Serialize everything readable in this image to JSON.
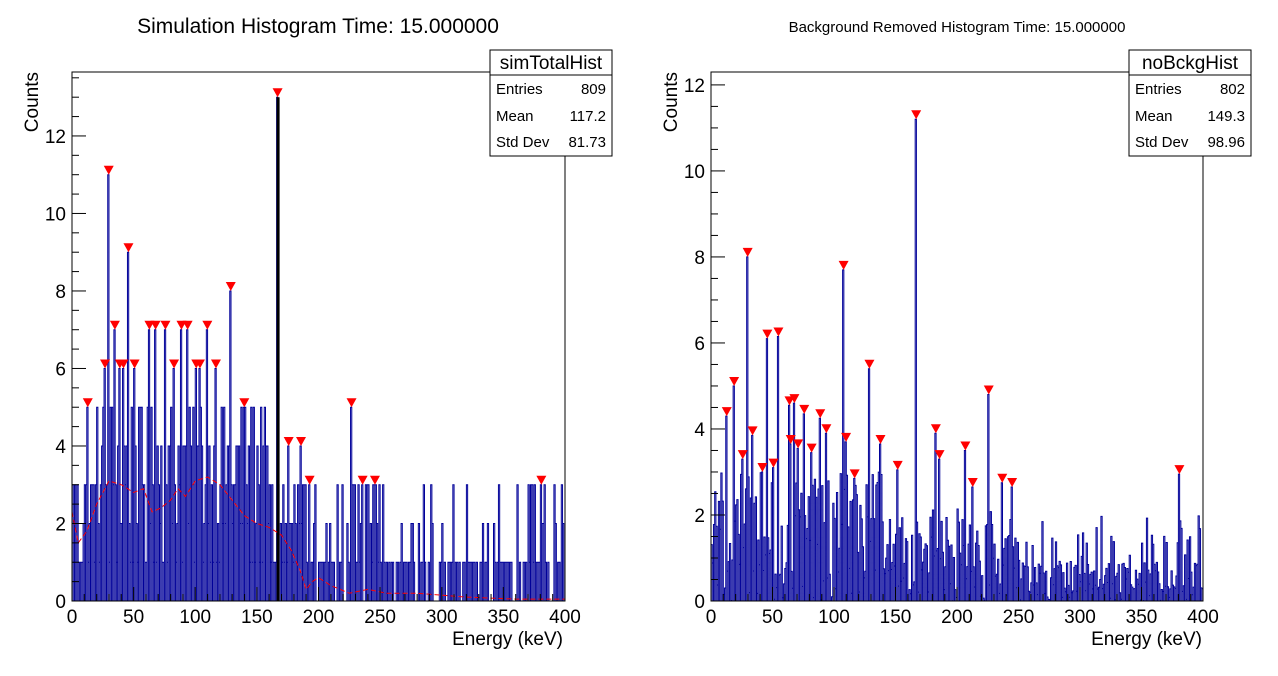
{
  "chart_data": [
    {
      "type": "bar",
      "title": "Simulation Histogram Time: 15.000000",
      "xlabel": "Energy (keV)",
      "ylabel": "Counts",
      "xlim": [
        0,
        400
      ],
      "ylim": [
        0,
        13.65
      ],
      "xticks": [
        0,
        50,
        100,
        150,
        200,
        250,
        300,
        350,
        400
      ],
      "yticks": [
        0,
        2,
        4,
        6,
        8,
        10,
        12
      ],
      "stats": {
        "name": "simTotalHist",
        "rows": [
          {
            "label": "Entries",
            "value": "809"
          },
          {
            "label": "Mean",
            "value": "117.2"
          },
          {
            "label": "Std Dev",
            "value": "81.73"
          }
        ]
      },
      "series_color": "#000099",
      "line_color": "#ff0000",
      "marker_color": "#ff0000",
      "highlight_bin": {
        "x": 166,
        "value": 13
      },
      "peaks": [
        {
          "x": 12,
          "y": 5
        },
        {
          "x": 26,
          "y": 6
        },
        {
          "x": 29,
          "y": 11
        },
        {
          "x": 34,
          "y": 7
        },
        {
          "x": 38,
          "y": 6
        },
        {
          "x": 41,
          "y": 6
        },
        {
          "x": 45,
          "y": 9
        },
        {
          "x": 50,
          "y": 6
        },
        {
          "x": 62,
          "y": 7
        },
        {
          "x": 67,
          "y": 7
        },
        {
          "x": 75,
          "y": 7
        },
        {
          "x": 82,
          "y": 6
        },
        {
          "x": 88,
          "y": 7
        },
        {
          "x": 93,
          "y": 7
        },
        {
          "x": 100,
          "y": 6
        },
        {
          "x": 103,
          "y": 6
        },
        {
          "x": 109,
          "y": 7
        },
        {
          "x": 116,
          "y": 6
        },
        {
          "x": 128,
          "y": 8
        },
        {
          "x": 139,
          "y": 5
        },
        {
          "x": 166,
          "y": 13
        },
        {
          "x": 175,
          "y": 4
        },
        {
          "x": 185,
          "y": 4
        },
        {
          "x": 192,
          "y": 3
        },
        {
          "x": 226,
          "y": 5
        },
        {
          "x": 235,
          "y": 3
        },
        {
          "x": 245,
          "y": 3
        },
        {
          "x": 380,
          "y": 3
        }
      ],
      "background_curve": [
        {
          "x": 0,
          "y": 2.3
        },
        {
          "x": 5,
          "y": 1.5
        },
        {
          "x": 12,
          "y": 1.8
        },
        {
          "x": 20,
          "y": 2.5
        },
        {
          "x": 30,
          "y": 3.1
        },
        {
          "x": 40,
          "y": 3.0
        },
        {
          "x": 50,
          "y": 2.8
        },
        {
          "x": 58,
          "y": 2.9
        },
        {
          "x": 65,
          "y": 2.3
        },
        {
          "x": 72,
          "y": 2.4
        },
        {
          "x": 80,
          "y": 2.6
        },
        {
          "x": 86,
          "y": 2.9
        },
        {
          "x": 92,
          "y": 2.7
        },
        {
          "x": 100,
          "y": 3.1
        },
        {
          "x": 110,
          "y": 3.2
        },
        {
          "x": 120,
          "y": 3.0
        },
        {
          "x": 130,
          "y": 2.6
        },
        {
          "x": 140,
          "y": 2.2
        },
        {
          "x": 150,
          "y": 2.0
        },
        {
          "x": 160,
          "y": 1.9
        },
        {
          "x": 170,
          "y": 1.7
        },
        {
          "x": 178,
          "y": 1.3
        },
        {
          "x": 185,
          "y": 0.8
        },
        {
          "x": 190,
          "y": 0.3
        },
        {
          "x": 195,
          "y": 0.5
        },
        {
          "x": 200,
          "y": 0.6
        },
        {
          "x": 210,
          "y": 0.4
        },
        {
          "x": 225,
          "y": 0.2
        },
        {
          "x": 240,
          "y": 0.3
        },
        {
          "x": 255,
          "y": 0.2
        },
        {
          "x": 280,
          "y": 0.2
        },
        {
          "x": 320,
          "y": 0.1
        },
        {
          "x": 360,
          "y": 0.05
        },
        {
          "x": 400,
          "y": 0.05
        }
      ]
    },
    {
      "type": "bar",
      "title": "Background Removed Histogram Time: 15.000000",
      "xlabel": "Energy (keV)",
      "ylabel": "Counts",
      "xlim": [
        0,
        400
      ],
      "ylim": [
        0,
        12.3
      ],
      "xticks": [
        0,
        50,
        100,
        150,
        200,
        250,
        300,
        350,
        400
      ],
      "yticks": [
        0,
        2,
        4,
        6,
        8,
        10,
        12
      ],
      "stats": {
        "name": "noBckgHist",
        "rows": [
          {
            "label": "Entries",
            "value": "802"
          },
          {
            "label": "Mean",
            "value": "149.3"
          },
          {
            "label": "Std Dev",
            "value": "98.96"
          }
        ]
      },
      "series_color": "#000099",
      "marker_color": "#ff0000",
      "peaks": [
        {
          "x": 12,
          "y": 4.3
        },
        {
          "x": 18,
          "y": 5.0
        },
        {
          "x": 25,
          "y": 3.3
        },
        {
          "x": 29,
          "y": 8.0
        },
        {
          "x": 33,
          "y": 3.85
        },
        {
          "x": 41,
          "y": 3.0
        },
        {
          "x": 45,
          "y": 6.1
        },
        {
          "x": 50,
          "y": 3.1
        },
        {
          "x": 54,
          "y": 6.15
        },
        {
          "x": 63,
          "y": 4.55
        },
        {
          "x": 64,
          "y": 3.65
        },
        {
          "x": 67,
          "y": 4.6
        },
        {
          "x": 70,
          "y": 3.55
        },
        {
          "x": 75,
          "y": 4.35
        },
        {
          "x": 81,
          "y": 3.45
        },
        {
          "x": 88,
          "y": 4.25
        },
        {
          "x": 93,
          "y": 3.9
        },
        {
          "x": 107,
          "y": 7.7
        },
        {
          "x": 109,
          "y": 3.7
        },
        {
          "x": 116,
          "y": 2.85
        },
        {
          "x": 128,
          "y": 5.4
        },
        {
          "x": 137,
          "y": 3.65
        },
        {
          "x": 151,
          "y": 3.05
        },
        {
          "x": 166,
          "y": 11.2
        },
        {
          "x": 182,
          "y": 3.9
        },
        {
          "x": 185,
          "y": 3.3
        },
        {
          "x": 206,
          "y": 3.5
        },
        {
          "x": 212,
          "y": 2.65
        },
        {
          "x": 225,
          "y": 4.8
        },
        {
          "x": 236,
          "y": 2.75
        },
        {
          "x": 244,
          "y": 2.65
        },
        {
          "x": 380,
          "y": 2.95
        }
      ]
    }
  ]
}
